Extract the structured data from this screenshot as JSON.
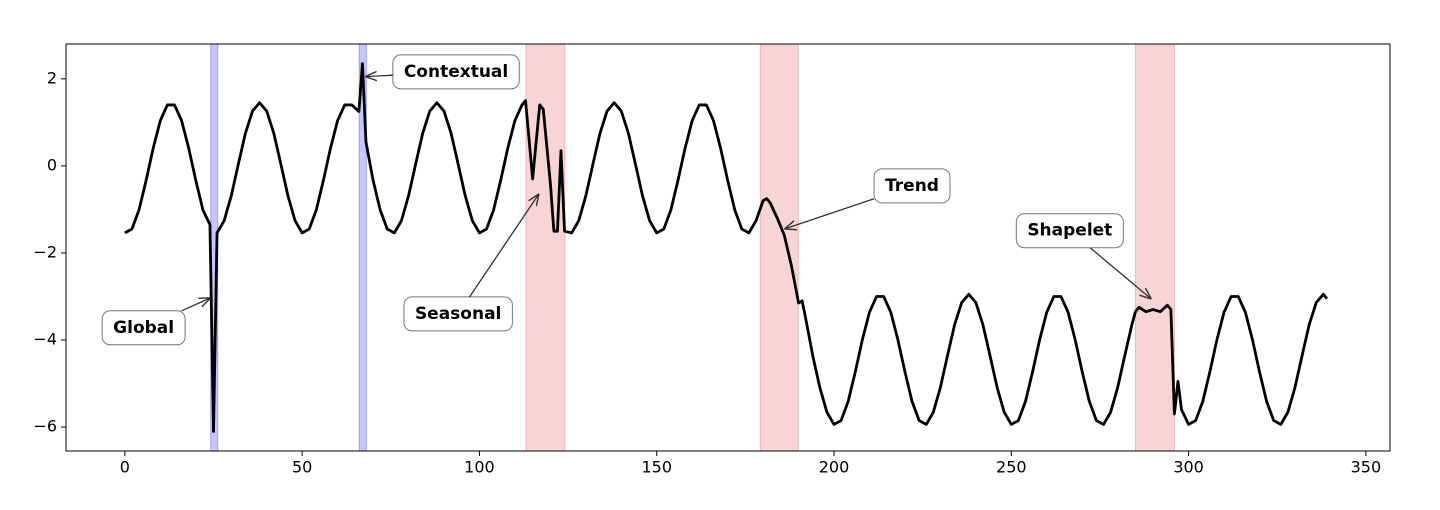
{
  "chart_data": {
    "type": "line",
    "color": "#000000",
    "x": [
      0,
      2,
      4,
      6,
      8,
      10,
      12,
      14,
      16,
      18,
      20,
      22,
      24,
      25,
      26,
      28,
      30,
      32,
      34,
      36,
      38,
      40,
      42,
      44,
      46,
      48,
      50,
      52,
      54,
      56,
      58,
      60,
      62,
      64,
      66,
      67,
      68,
      70,
      72,
      74,
      76,
      78,
      80,
      82,
      84,
      86,
      88,
      90,
      92,
      94,
      96,
      98,
      100,
      102,
      104,
      106,
      108,
      110,
      112,
      113,
      115,
      117,
      118,
      120,
      121,
      122,
      123,
      124,
      126,
      128,
      130,
      132,
      134,
      136,
      138,
      140,
      142,
      144,
      146,
      148,
      150,
      152,
      154,
      156,
      158,
      160,
      162,
      164,
      166,
      168,
      170,
      172,
      174,
      176,
      178,
      180,
      181,
      182,
      184,
      186,
      188,
      190,
      191,
      192,
      194,
      196,
      198,
      200,
      202,
      204,
      206,
      208,
      210,
      212,
      214,
      216,
      218,
      220,
      222,
      224,
      226,
      228,
      230,
      232,
      234,
      236,
      238,
      240,
      242,
      244,
      246,
      248,
      250,
      252,
      254,
      256,
      258,
      260,
      262,
      264,
      266,
      268,
      270,
      272,
      274,
      276,
      278,
      280,
      282,
      284,
      285,
      286,
      288,
      290,
      292,
      294,
      295,
      296,
      297,
      298,
      300,
      302,
      304,
      306,
      308,
      310,
      312,
      314,
      316,
      318,
      320,
      322,
      324,
      326,
      328,
      330,
      332,
      334,
      336,
      338,
      339
    ],
    "values": [
      -1.54,
      -1.45,
      -1.01,
      -0.33,
      0.41,
      1.04,
      1.4,
      1.4,
      1.04,
      0.41,
      -0.33,
      -1.01,
      -1.35,
      -6.1,
      -1.54,
      -1.26,
      -0.69,
      0.04,
      0.75,
      1.26,
      1.45,
      1.26,
      0.75,
      0.04,
      -0.69,
      -1.26,
      -1.54,
      -1.45,
      -1.01,
      -0.33,
      0.41,
      1.04,
      1.4,
      1.4,
      1.25,
      2.35,
      0.55,
      -0.33,
      -1.01,
      -1.45,
      -1.54,
      -1.26,
      -0.69,
      0.04,
      0.75,
      1.26,
      1.45,
      1.26,
      0.75,
      0.04,
      -0.69,
      -1.26,
      -1.54,
      -1.45,
      -1.01,
      -0.33,
      0.41,
      1.04,
      1.4,
      1.5,
      -0.3,
      1.4,
      1.3,
      -0.4,
      -1.5,
      -1.5,
      0.35,
      -1.5,
      -1.54,
      -1.26,
      -0.69,
      0.04,
      0.75,
      1.26,
      1.45,
      1.26,
      0.75,
      0.04,
      -0.69,
      -1.26,
      -1.54,
      -1.45,
      -1.01,
      -0.33,
      0.41,
      1.04,
      1.4,
      1.4,
      1.04,
      0.41,
      -0.33,
      -1.01,
      -1.45,
      -1.54,
      -1.26,
      -0.8,
      -0.75,
      -0.85,
      -1.2,
      -1.6,
      -2.3,
      -3.15,
      -3.1,
      -3.5,
      -4.36,
      -5.09,
      -5.66,
      -5.94,
      -5.85,
      -5.41,
      -4.73,
      -3.99,
      -3.36,
      -3.0,
      -3.0,
      -3.36,
      -3.99,
      -4.73,
      -5.41,
      -5.85,
      -5.94,
      -5.66,
      -5.09,
      -4.36,
      -3.65,
      -3.14,
      -2.95,
      -3.14,
      -3.65,
      -4.36,
      -5.09,
      -5.66,
      -5.94,
      -5.85,
      -5.41,
      -4.73,
      -3.99,
      -3.36,
      -3.0,
      -3.0,
      -3.36,
      -3.99,
      -4.73,
      -5.41,
      -5.85,
      -5.94,
      -5.66,
      -5.09,
      -4.36,
      -3.65,
      -3.35,
      -3.25,
      -3.35,
      -3.3,
      -3.35,
      -3.2,
      -3.3,
      -5.7,
      -4.95,
      -5.6,
      -5.94,
      -5.85,
      -5.41,
      -4.73,
      -3.99,
      -3.36,
      -3.0,
      -3.0,
      -3.36,
      -3.99,
      -4.73,
      -5.41,
      -5.85,
      -5.94,
      -5.66,
      -5.09,
      -4.36,
      -3.65,
      -3.14,
      -2.95,
      -3.05
    ],
    "xlim": [
      -16.6,
      356.8
    ],
    "ylim": [
      -6.55,
      2.8
    ],
    "xticks": [
      0,
      50,
      100,
      150,
      200,
      250,
      300,
      350
    ],
    "yticks": [
      {
        "value": -6,
        "label": "−6"
      },
      {
        "value": -4,
        "label": "−4"
      },
      {
        "value": -2,
        "label": "−2"
      },
      0,
      2
    ],
    "spans": [
      {
        "x": [
          24.2,
          26.2
        ],
        "color": "#0000ff"
      },
      {
        "x": [
          66.1,
          68.1
        ],
        "color": "#0000ff"
      },
      {
        "x": [
          113.1,
          124.1
        ],
        "color": "#e04040"
      },
      {
        "x": [
          179.2,
          189.9
        ],
        "color": "#e04040"
      },
      {
        "x": [
          285,
          296
        ],
        "color": "#e04040"
      }
    ],
    "annotations": [
      {
        "text": "Global",
        "xy": [
          24.2,
          -3.03
        ],
        "xytext": [
          5.3,
          -3.72
        ]
      },
      {
        "text": "Contextual",
        "xy": [
          67.8,
          2.05
        ],
        "xytext": [
          93.4,
          2.16
        ]
      },
      {
        "text": "Seasonal",
        "xy": [
          116.8,
          -0.64
        ],
        "xytext": [
          94,
          -3.4
        ]
      },
      {
        "text": "Trend",
        "xy": [
          186,
          -1.45
        ],
        "xytext": [
          222,
          -0.46
        ]
      },
      {
        "text": "Shapelet",
        "xy": [
          289.5,
          -3.06
        ],
        "xytext": [
          266.5,
          -1.49
        ]
      }
    ]
  }
}
